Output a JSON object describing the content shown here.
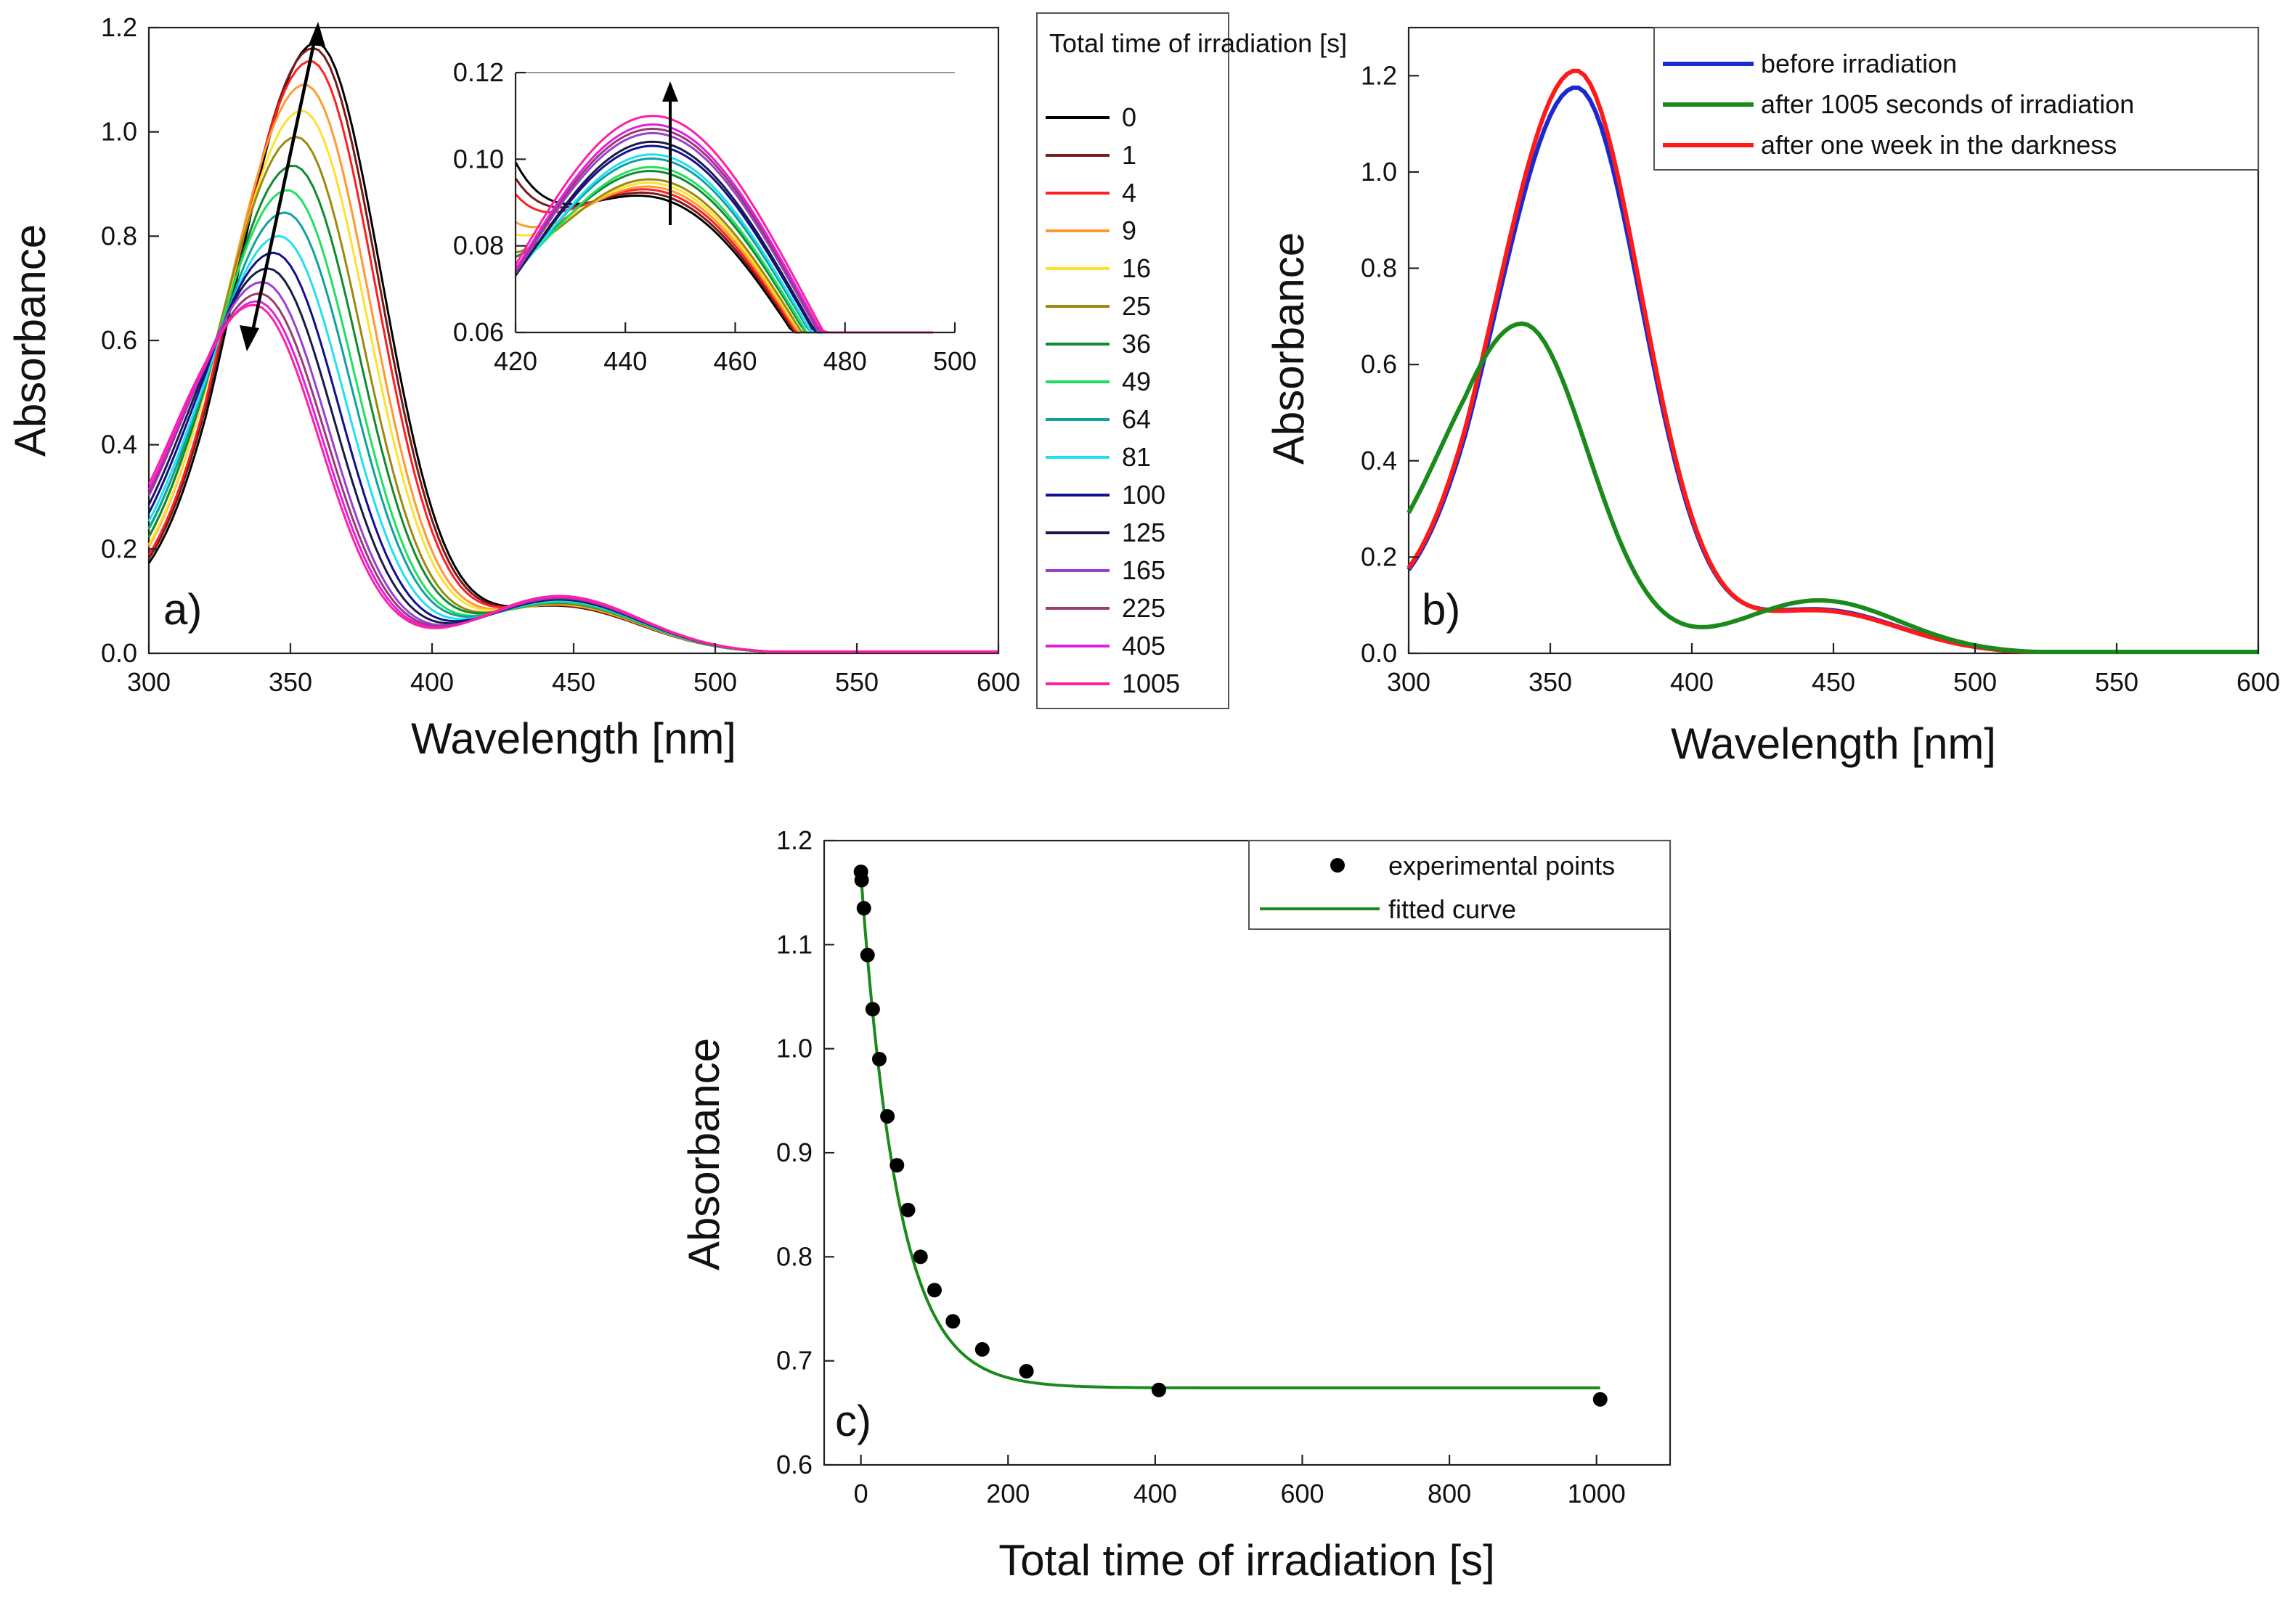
{
  "chart_data": [
    {
      "panel": "a",
      "type": "line",
      "panel_label": "a)",
      "xlabel": "Wavelength [nm]",
      "ylabel": "Absorbance",
      "xlim": [
        300,
        600
      ],
      "ylim": [
        0,
        1.2
      ],
      "xticks": [
        "300",
        "350",
        "400",
        "450",
        "500",
        "550",
        "600"
      ],
      "yticks": [
        "0.0",
        "0.2",
        "0.4",
        "0.6",
        "0.8",
        "1.0",
        "1.2"
      ],
      "legend_title": "Total time of irradiation [s]",
      "legend_position": "outside-right",
      "series": [
        {
          "name": "0",
          "color": "#000000",
          "peak": 1.17,
          "peak_wl": 359,
          "plateau": 0.09
        },
        {
          "name": "1",
          "color": "#7a1a1a",
          "peak": 1.16,
          "peak_wl": 358,
          "plateau": 0.091
        },
        {
          "name": "4",
          "color": "#ff2020",
          "peak": 1.135,
          "peak_wl": 357,
          "plateau": 0.092
        },
        {
          "name": "9",
          "color": "#ff9a30",
          "peak": 1.09,
          "peak_wl": 355,
          "plateau": 0.093
        },
        {
          "name": "16",
          "color": "#ffe030",
          "peak": 1.04,
          "peak_wl": 354,
          "plateau": 0.094
        },
        {
          "name": "25",
          "color": "#9a8a10",
          "peak": 0.99,
          "peak_wl": 352,
          "plateau": 0.095
        },
        {
          "name": "36",
          "color": "#108a30",
          "peak": 0.935,
          "peak_wl": 351,
          "plateau": 0.097
        },
        {
          "name": "49",
          "color": "#20e060",
          "peak": 0.888,
          "peak_wl": 349,
          "plateau": 0.098
        },
        {
          "name": "64",
          "color": "#10a0a0",
          "peak": 0.845,
          "peak_wl": 348,
          "plateau": 0.1
        },
        {
          "name": "81",
          "color": "#20e0f0",
          "peak": 0.8,
          "peak_wl": 346,
          "plateau": 0.101
        },
        {
          "name": "100",
          "color": "#101090",
          "peak": 0.768,
          "peak_wl": 344,
          "plateau": 0.103
        },
        {
          "name": "125",
          "color": "#1a1a4a",
          "peak": 0.738,
          "peak_wl": 342,
          "plateau": 0.104
        },
        {
          "name": "165",
          "color": "#9a40d0",
          "peak": 0.712,
          "peak_wl": 340,
          "plateau": 0.106
        },
        {
          "name": "225",
          "color": "#9a3a70",
          "peak": 0.69,
          "peak_wl": 339,
          "plateau": 0.107
        },
        {
          "name": "405",
          "color": "#e020e0",
          "peak": 0.675,
          "peak_wl": 338,
          "plateau": 0.108
        },
        {
          "name": "1005",
          "color": "#ff20a0",
          "peak": 0.668,
          "peak_wl": 337,
          "plateau": 0.11
        }
      ],
      "inset": {
        "xlim": [
          420,
          500
        ],
        "ylim": [
          0.06,
          0.12
        ],
        "xticks": [
          "420",
          "440",
          "460",
          "480",
          "500"
        ],
        "yticks": [
          "0.06",
          "0.08",
          "0.10",
          "0.12"
        ]
      },
      "annotations": [
        "arrow: peak absorbance decreases with irradiation time",
        "arrow: 450 nm absorbance increases with irradiation time"
      ]
    },
    {
      "panel": "b",
      "type": "line",
      "panel_label": "b)",
      "xlabel": "Wavelength [nm]",
      "ylabel": "Absorbance",
      "xlim": [
        300,
        600
      ],
      "ylim": [
        0,
        1.3
      ],
      "xticks": [
        "300",
        "350",
        "400",
        "450",
        "500",
        "550",
        "600"
      ],
      "yticks": [
        "0.0",
        "0.2",
        "0.4",
        "0.6",
        "0.8",
        "1.0",
        "1.2"
      ],
      "legend_position": "top-right",
      "series": [
        {
          "name": "before irradiation",
          "color": "#1a2ad0",
          "peak": 1.175,
          "peak_wl": 359,
          "plateau": 0.09
        },
        {
          "name": "after 1005 seconds of irradiation",
          "color": "#1a8a1a",
          "peak": 0.685,
          "peak_wl": 340,
          "plateau": 0.11
        },
        {
          "name": "after one week in the darkness",
          "color": "#ff1a1a",
          "peak": 1.21,
          "peak_wl": 359,
          "plateau": 0.088
        }
      ]
    },
    {
      "panel": "c",
      "type": "scatter",
      "panel_label": "c)",
      "xlabel": "Total time of irradiation [s]",
      "ylabel": "Absorbance",
      "xlim": [
        -50,
        1100
      ],
      "ylim": [
        0.6,
        1.2
      ],
      "xticks": [
        "0",
        "200",
        "400",
        "600",
        "800",
        "1000"
      ],
      "yticks": [
        "0.6",
        "0.7",
        "0.8",
        "0.9",
        "1.0",
        "1.1",
        "1.2"
      ],
      "legend_position": "top-right",
      "legend": [
        "experimental points",
        "fitted curve"
      ],
      "points": {
        "x": [
          0,
          1,
          4,
          9,
          16,
          25,
          36,
          49,
          64,
          81,
          100,
          125,
          165,
          225,
          405,
          1005
        ],
        "y": [
          1.17,
          1.162,
          1.135,
          1.09,
          1.038,
          0.99,
          0.935,
          0.888,
          0.845,
          0.8,
          0.768,
          0.738,
          0.711,
          0.69,
          0.672,
          0.663
        ]
      },
      "fit": {
        "color": "#1a8a1a",
        "model": "y = 0.674 + 0.493*exp(-x/51)"
      }
    }
  ]
}
